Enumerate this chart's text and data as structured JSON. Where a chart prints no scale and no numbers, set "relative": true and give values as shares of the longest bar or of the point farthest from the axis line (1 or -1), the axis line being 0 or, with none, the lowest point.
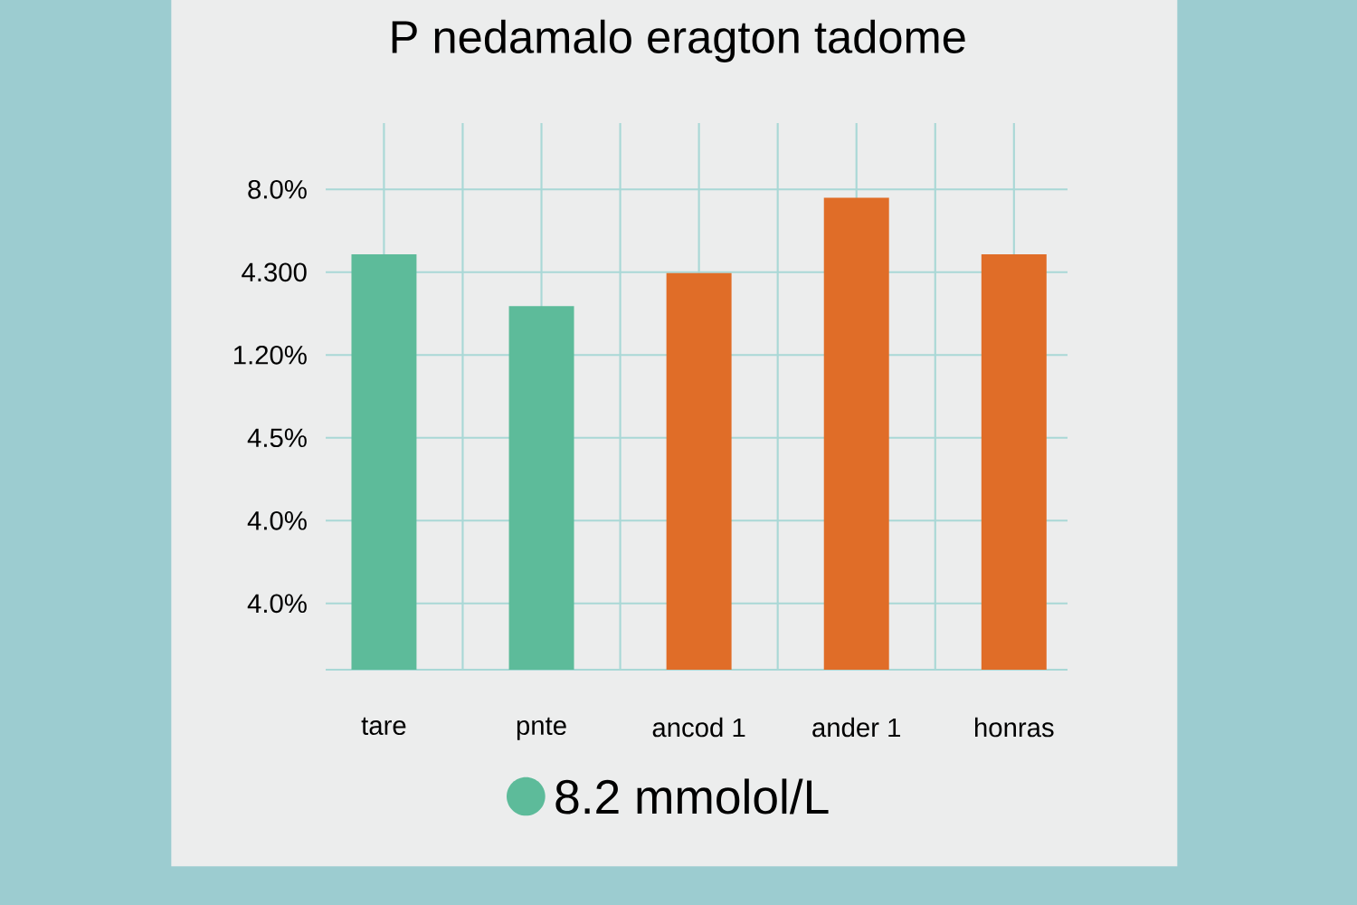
{
  "chart_data": {
    "type": "bar",
    "title": "P nedamalo eragton tadome",
    "categories": [
      "tare",
      "pnte",
      "ancod 1",
      "ander 1",
      "honras"
    ],
    "values": [
      0.88,
      0.77,
      0.84,
      1,
      0.88
    ],
    "colors": [
      "#5dbb9a",
      "#5dbb9a",
      "#e06d28",
      "#e06d28",
      "#e06d28"
    ],
    "relative": true,
    "grid": true,
    "annotations": [
      "8.0%",
      "4.300",
      "1.20%",
      "4.5%",
      "4.0%",
      "4.0%",
      "8.2 mmolol/L"
    ]
  }
}
